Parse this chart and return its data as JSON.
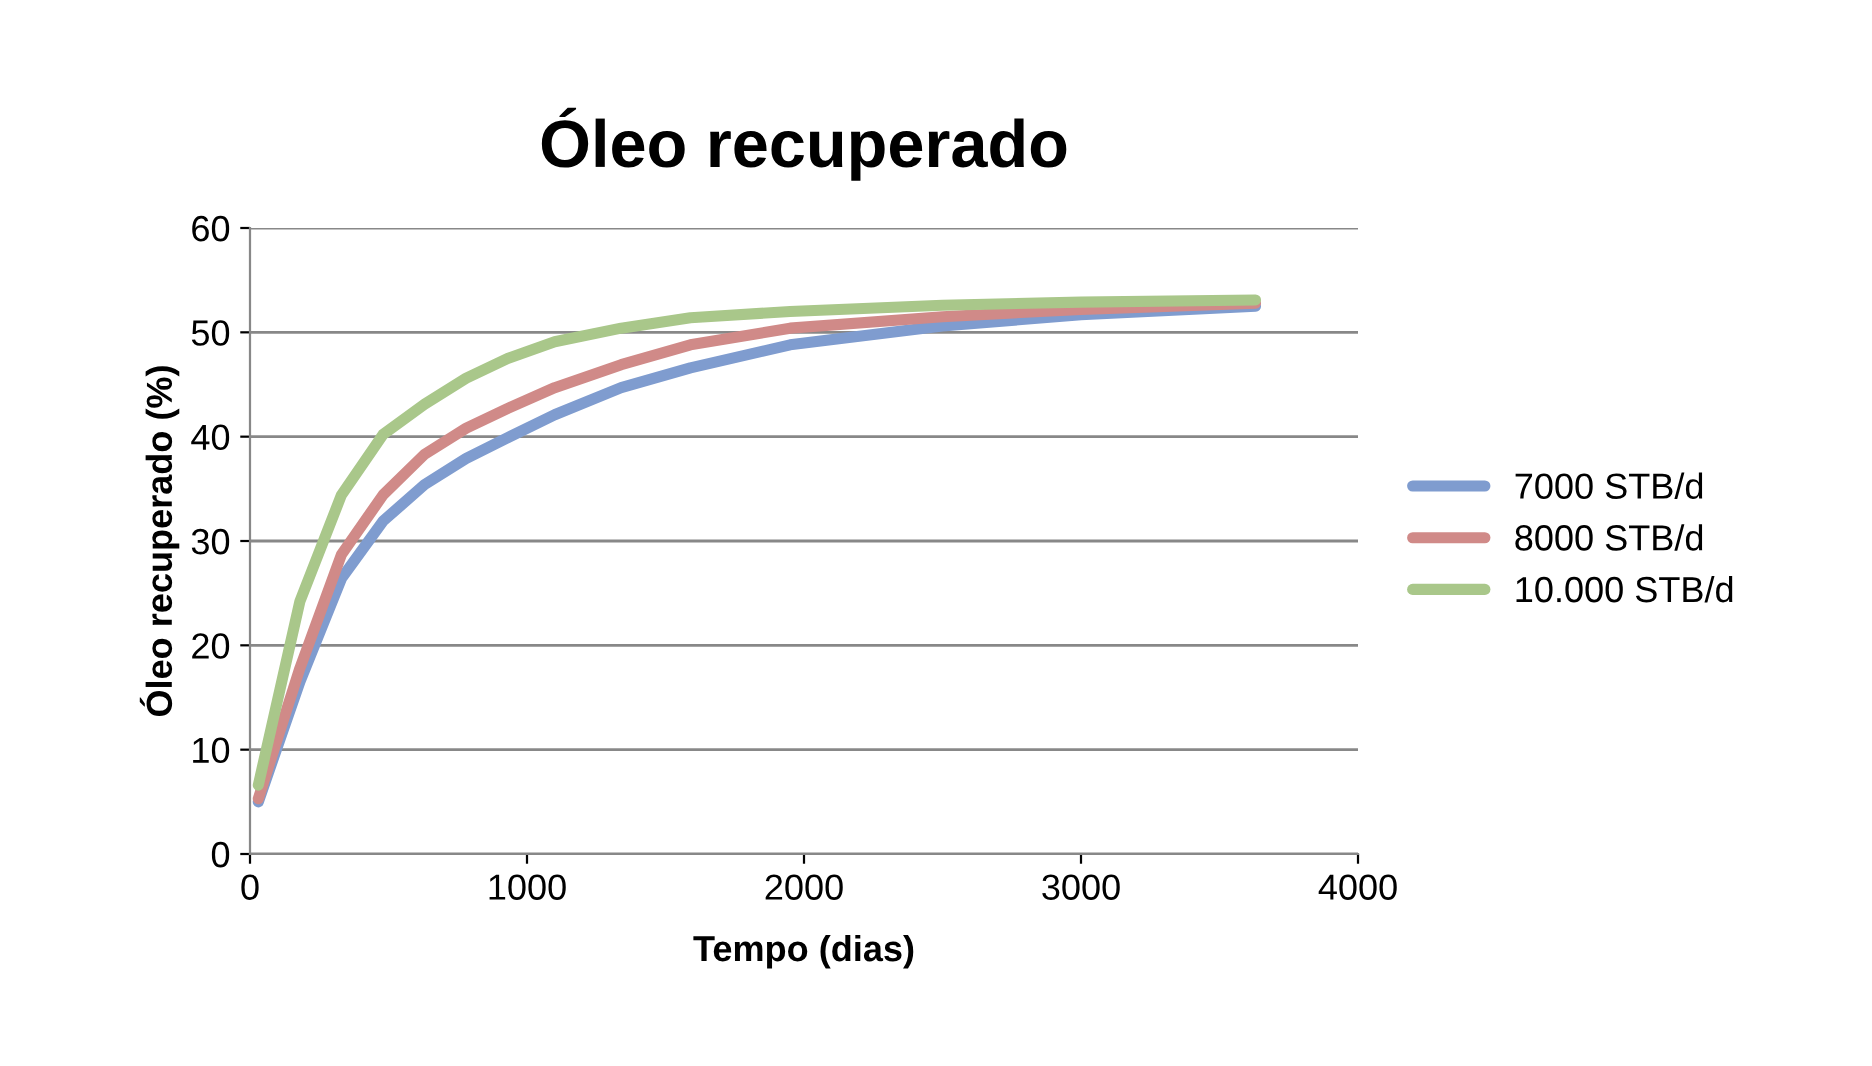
{
  "chart_data": {
    "type": "line",
    "title": "Óleo recuperado",
    "xlabel": "Tempo (dias)",
    "ylabel": "Óleo recuperado (%)",
    "xlim": [
      0,
      4000
    ],
    "xticks": [
      0,
      1000,
      2000,
      3000,
      4000
    ],
    "ylim": [
      0,
      60
    ],
    "yticks": [
      0,
      10,
      20,
      30,
      40,
      50,
      60
    ],
    "grid": "y",
    "legend": "right",
    "marker": "none",
    "line_style": "solid",
    "x": [
      30,
      180,
      330,
      480,
      630,
      780,
      930,
      1100,
      1340,
      1590,
      1950,
      2500,
      3000,
      3630
    ],
    "series": [
      {
        "name": "7000 STB/d",
        "color": "#7f9ccf",
        "values": [
          5.0,
          16.5,
          26.4,
          31.9,
          35.4,
          37.9,
          39.9,
          42.1,
          44.7,
          46.6,
          48.8,
          50.6,
          51.7,
          52.5
        ]
      },
      {
        "name": "8000 STB/d",
        "color": "#d08a88",
        "values": [
          5.3,
          17.8,
          28.7,
          34.4,
          38.3,
          40.8,
          42.7,
          44.7,
          46.9,
          48.8,
          50.4,
          51.5,
          52.2,
          52.8
        ]
      },
      {
        "name": "10.000 STB/d",
        "color": "#a9c78a",
        "values": [
          6.6,
          24.2,
          34.4,
          40.2,
          43.1,
          45.6,
          47.5,
          49.1,
          50.4,
          51.4,
          52.0,
          52.6,
          52.9,
          53.1
        ]
      }
    ]
  }
}
